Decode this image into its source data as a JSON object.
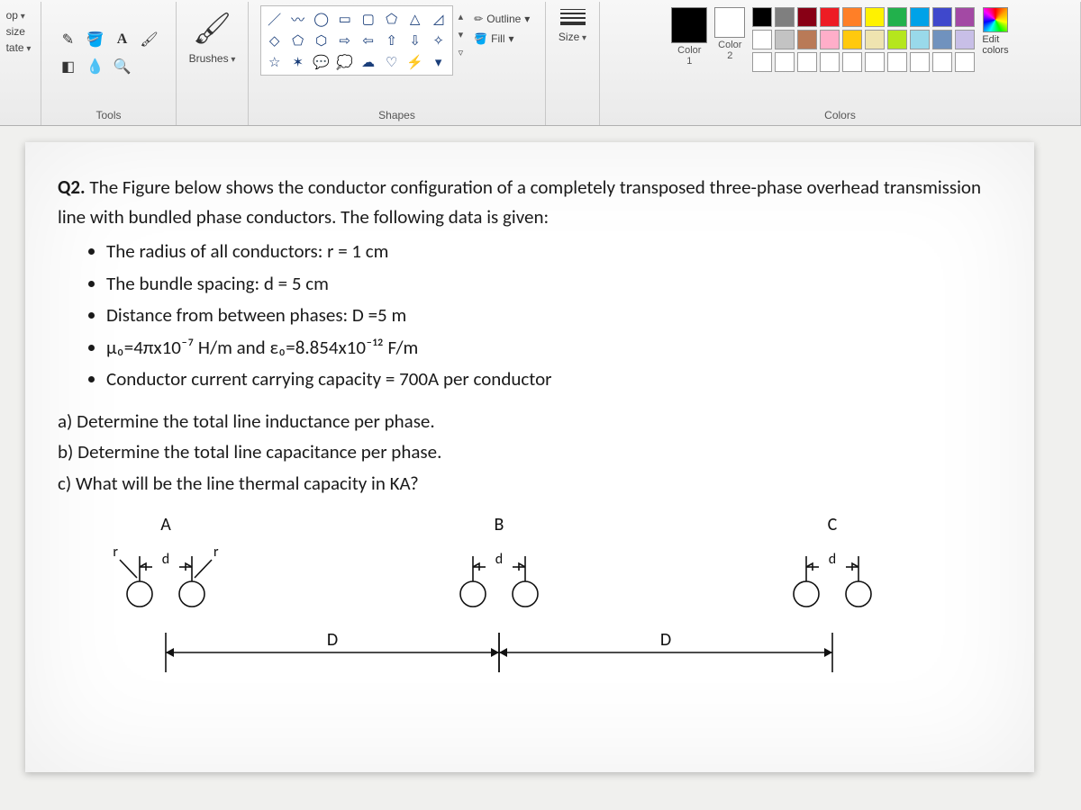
{
  "ribbon": {
    "left_partial": {
      "crop": "op",
      "resize": "size",
      "rotate": "tate"
    },
    "tools": {
      "label": "Tools",
      "items": [
        "pencil",
        "fill",
        "text",
        "eraser",
        "picker",
        "magnifier"
      ],
      "glyphs": {
        "pencil": "✎",
        "fill": "🪣",
        "text": "A",
        "eraser": "◧",
        "picker": "✎⁺",
        "magnifier": "🔍"
      }
    },
    "brushes": {
      "label": "Brushes"
    },
    "shapes": {
      "label": "Shapes",
      "outline": "Outline",
      "fill": "Fill",
      "glyphs": [
        "／",
        "〰",
        "◯",
        "▭",
        "▭",
        "◿",
        "△",
        "▱",
        "◇",
        "◇",
        "◯",
        "⬨",
        "⇨",
        "⇦",
        "⇧",
        "⇩",
        "✧",
        "☆",
        "✦",
        "💬",
        "💭",
        "💬",
        "▾"
      ]
    },
    "size": {
      "label": "Size"
    },
    "colors": {
      "label": "Colors",
      "color1": "Color\n1",
      "color2": "Color\n2",
      "color1_value": "#000000",
      "color2_value": "#ffffff",
      "edit": "Edit\ncolors",
      "palette": [
        "#000000",
        "#7f7f7f",
        "#880015",
        "#ed1c24",
        "#ff7f27",
        "#fff200",
        "#22b14c",
        "#00a2e8",
        "#3f48cc",
        "#a349a4",
        "#ffffff",
        "#c3c3c3",
        "#b97a57",
        "#ffaec9",
        "#ffc90e",
        "#efe4b0",
        "#b5e61d",
        "#99d9ea",
        "#7092be",
        "#c8bfe7",
        "#ffffff",
        "#ffffff",
        "#ffffff",
        "#ffffff",
        "#ffffff",
        "#ffffff",
        "#ffffff",
        "#ffffff",
        "#ffffff",
        "#ffffff"
      ]
    }
  },
  "document": {
    "q_label": "Q2.",
    "intro": "The Figure below shows the conductor configuration of a completely transposed three-phase overhead transmission line with bundled phase conductors. The following data is given:",
    "bullets": [
      "The radius of all conductors: r =  1 cm",
      "The bundle spacing: d = 5 cm",
      "Distance from between phases: D =5 m",
      "μ₀=4πx10⁻⁷ H/m and ε₀=8.854x10⁻¹² F/m",
      "Conductor current carrying capacity = 700A per conductor"
    ],
    "parts": {
      "a": "a) Determine the total line inductance per phase.",
      "b": "b) Determine the total line capacitance per phase.",
      "c": "c) What will be the line thermal capacity in KA?"
    },
    "diagram": {
      "phase_labels": [
        "A",
        "B",
        "C"
      ],
      "bundle_label": "d",
      "radius_label": "r",
      "span_label": "D"
    }
  }
}
